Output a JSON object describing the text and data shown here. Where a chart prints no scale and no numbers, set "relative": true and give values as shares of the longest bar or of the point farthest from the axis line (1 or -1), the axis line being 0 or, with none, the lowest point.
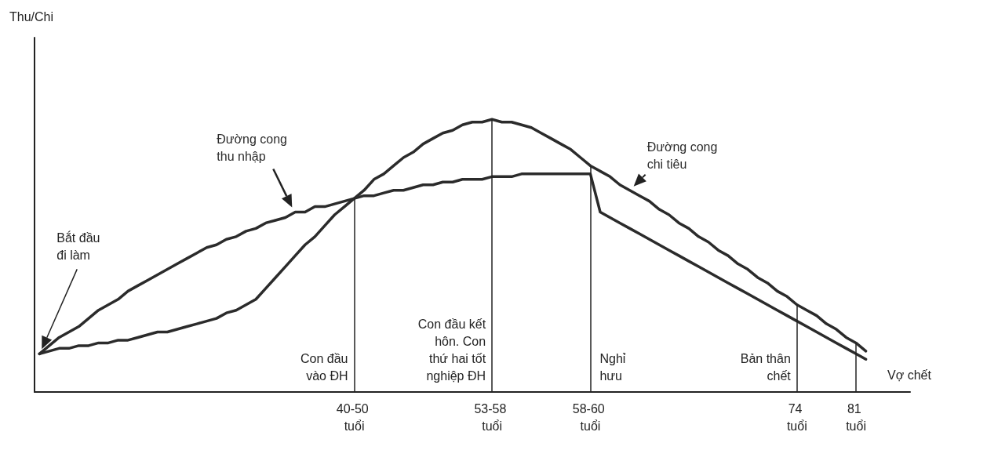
{
  "chart_data": {
    "type": "line",
    "relative": true,
    "categories": [
      null,
      null,
      null,
      null,
      null,
      null,
      null,
      null,
      null,
      null,
      null,
      null,
      null,
      null,
      null,
      null,
      null,
      null,
      null,
      null,
      null,
      null,
      null,
      null,
      null,
      null,
      null,
      null,
      null,
      null,
      null,
      null,
      "40-50 tuổi",
      null,
      null,
      null,
      null,
      null,
      null,
      null,
      null,
      null,
      null,
      null,
      null,
      null,
      "53-58 tuổi",
      null,
      null,
      null,
      null,
      null,
      null,
      null,
      null,
      null,
      "58-60 tuổi",
      null,
      null,
      null,
      null,
      null,
      null,
      null,
      null,
      null,
      null,
      null,
      null,
      null,
      null,
      null,
      null,
      null,
      null,
      null,
      null,
      "74 tuổi",
      null,
      null,
      null,
      null,
      null,
      "81 tuổi",
      null,
      null,
      null,
      null,
      null
    ],
    "series": [
      {
        "name": "Đường cong thu nhập",
        "color": "#2b2b2b",
        "values": [
          0.14,
          0.17,
          0.2,
          0.22,
          0.24,
          0.27,
          0.3,
          0.32,
          0.34,
          0.37,
          0.39,
          0.41,
          0.43,
          0.45,
          0.47,
          0.49,
          0.51,
          0.53,
          0.54,
          0.56,
          0.57,
          0.59,
          0.6,
          0.62,
          0.63,
          0.64,
          0.66,
          0.66,
          0.68,
          0.68,
          0.69,
          0.7,
          0.71,
          0.72,
          0.72,
          0.73,
          0.74,
          0.74,
          0.75,
          0.76,
          0.76,
          0.77,
          0.77,
          0.78,
          0.78,
          0.78,
          0.79,
          0.79,
          0.79,
          0.8,
          0.8,
          0.8,
          0.8,
          0.8,
          0.8,
          0.8,
          0.8,
          0.66,
          0.64,
          0.62,
          0.6,
          0.58,
          0.56,
          0.54,
          0.52,
          0.5,
          0.48,
          0.46,
          0.44,
          0.42,
          0.4,
          0.38,
          0.36,
          0.34,
          0.32,
          0.3,
          0.28,
          0.26,
          0.24,
          0.22,
          0.2,
          0.18,
          0.16,
          0.14,
          0.12,
          null,
          null,
          null,
          null
        ]
      },
      {
        "name": "Đường cong chi tiêu",
        "color": "#2b2b2b",
        "values": [
          0.14,
          0.15,
          0.16,
          0.16,
          0.17,
          0.17,
          0.18,
          0.18,
          0.19,
          0.19,
          0.2,
          0.21,
          0.22,
          0.22,
          0.23,
          0.24,
          0.25,
          0.26,
          0.27,
          0.29,
          0.3,
          0.32,
          0.34,
          0.38,
          0.42,
          0.46,
          0.5,
          0.54,
          0.57,
          0.61,
          0.65,
          0.68,
          0.71,
          0.74,
          0.78,
          0.8,
          0.83,
          0.86,
          0.88,
          0.91,
          0.93,
          0.95,
          0.96,
          0.98,
          0.99,
          0.99,
          1,
          0.99,
          0.99,
          0.98,
          0.97,
          0.95,
          0.93,
          0.91,
          0.89,
          0.86,
          0.83,
          0.81,
          0.79,
          0.76,
          0.74,
          0.72,
          0.7,
          0.67,
          0.65,
          0.62,
          0.6,
          0.57,
          0.55,
          0.52,
          0.5,
          0.47,
          0.45,
          0.42,
          0.4,
          0.37,
          0.35,
          0.32,
          0.3,
          0.28,
          0.25,
          0.23,
          0.2,
          0.18,
          0.15,
          null,
          null,
          null,
          null
        ]
      }
    ],
    "ref_lines": [
      {
        "axis": "x",
        "value": "40-50 tuổi",
        "label": "Con đầu vào ĐH"
      },
      {
        "axis": "x",
        "value": "53-58 tuổi",
        "label": "Con đầu kết hôn. Con thứ hai tốt nghiệp ĐH"
      },
      {
        "axis": "x",
        "value": "58-60 tuổi",
        "label": "Nghỉ hưu"
      },
      {
        "axis": "x",
        "value": "74 tuổi",
        "label": "Bản thân chết"
      },
      {
        "axis": "x",
        "value": "81 tuổi",
        "label": "Vợ chết"
      }
    ],
    "annotations": [
      "Bắt đầu đi làm",
      "Thu/Chi"
    ]
  }
}
